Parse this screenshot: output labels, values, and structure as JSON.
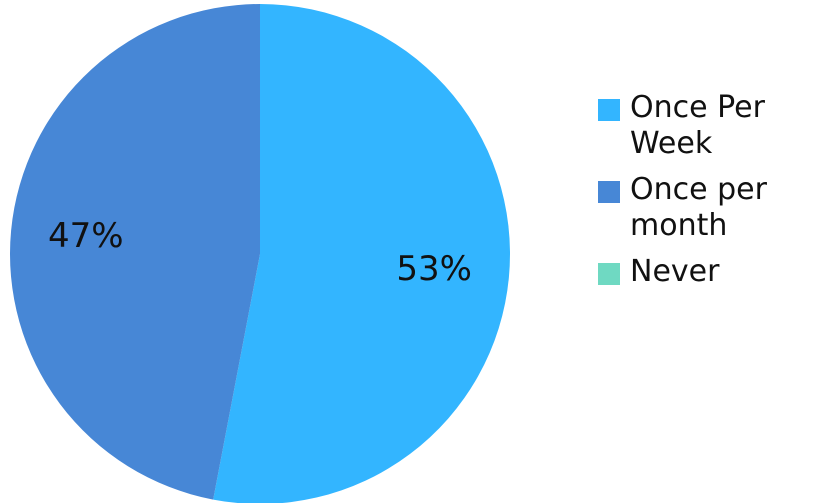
{
  "chart_data": {
    "type": "pie",
    "categories": [
      "Once Per Week",
      "Once per month",
      "Never"
    ],
    "values": [
      53,
      47,
      0
    ],
    "data_labels": [
      "53%",
      "47%",
      ""
    ],
    "colors": [
      "#33b5ff",
      "#4787d6",
      "#6fd9c2"
    ],
    "legend_position": "right",
    "start_angle_deg": 0,
    "direction": "clockwise"
  },
  "legend": {
    "items": [
      {
        "label": "Once Per Week",
        "color": "#33b5ff"
      },
      {
        "label": "Once per month",
        "color": "#4787d6"
      },
      {
        "label": "Never",
        "color": "#6fd9c2"
      }
    ]
  }
}
